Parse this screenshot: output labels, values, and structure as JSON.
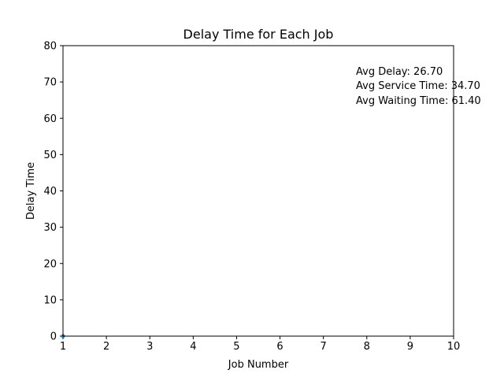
{
  "chart_data": {
    "type": "line",
    "title": "Delay Time for Each Job",
    "xlabel": "Job Number",
    "ylabel": "Delay Time",
    "xlim": [
      1,
      10
    ],
    "ylim": [
      0,
      80
    ],
    "xticks": [
      1,
      2,
      3,
      4,
      5,
      6,
      7,
      8,
      9,
      10
    ],
    "yticks": [
      0,
      10,
      20,
      30,
      40,
      50,
      60,
      70,
      80
    ],
    "grid": false,
    "series": [
      {
        "x": [
          1
        ],
        "y": [
          0
        ],
        "color": "#1f77b4"
      }
    ],
    "annotations": [
      "Avg Delay: 26.70",
      "Avg Service Time: 34.70",
      "Avg Waiting Time: 61.40"
    ]
  }
}
